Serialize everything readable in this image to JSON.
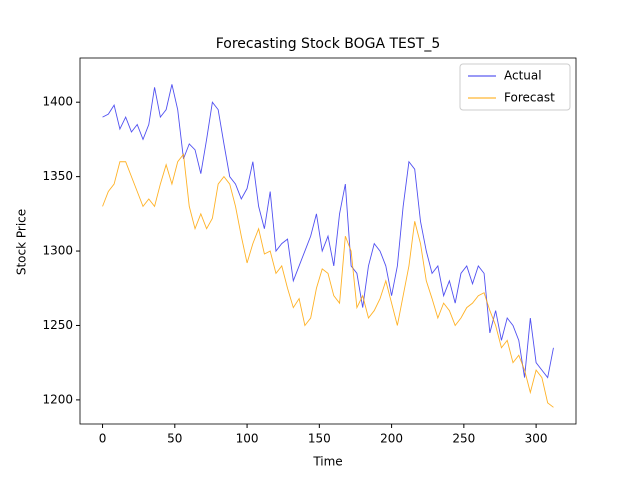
{
  "chart_data": {
    "type": "line",
    "title": "Forecasting Stock BOGA TEST_5",
    "xlabel": "Time",
    "ylabel": "Stock Price",
    "x": [
      0,
      4,
      8,
      12,
      16,
      20,
      24,
      28,
      32,
      36,
      40,
      44,
      48,
      52,
      56,
      60,
      64,
      68,
      72,
      76,
      80,
      84,
      88,
      92,
      96,
      100,
      104,
      108,
      112,
      116,
      120,
      124,
      128,
      132,
      136,
      140,
      144,
      148,
      152,
      156,
      160,
      164,
      168,
      172,
      176,
      180,
      184,
      188,
      192,
      196,
      200,
      204,
      208,
      212,
      216,
      220,
      224,
      228,
      232,
      236,
      240,
      244,
      248,
      252,
      256,
      260,
      264,
      268,
      272,
      276,
      280,
      284,
      288,
      292,
      296,
      300,
      304,
      308,
      312
    ],
    "series": [
      {
        "name": "Actual",
        "color": "#3333ee",
        "values": [
          1390,
          1392,
          1398,
          1382,
          1390,
          1380,
          1385,
          1375,
          1385,
          1410,
          1390,
          1395,
          1412,
          1395,
          1362,
          1372,
          1368,
          1352,
          1375,
          1400,
          1395,
          1372,
          1350,
          1345,
          1335,
          1342,
          1360,
          1330,
          1315,
          1340,
          1300,
          1305,
          1308,
          1280,
          1290,
          1300,
          1310,
          1325,
          1300,
          1310,
          1290,
          1325,
          1345,
          1290,
          1285,
          1262,
          1290,
          1305,
          1300,
          1290,
          1270,
          1290,
          1330,
          1360,
          1355,
          1320,
          1300,
          1285,
          1290,
          1270,
          1280,
          1265,
          1285,
          1290,
          1278,
          1290,
          1285,
          1245,
          1260,
          1240,
          1255,
          1250,
          1240,
          1215,
          1255,
          1225,
          1220,
          1215,
          1235
        ]
      },
      {
        "name": "Forecast",
        "color": "#ffa500",
        "values": [
          1330,
          1340,
          1345,
          1360,
          1360,
          1350,
          1340,
          1330,
          1335,
          1330,
          1345,
          1358,
          1345,
          1360,
          1365,
          1330,
          1315,
          1325,
          1315,
          1322,
          1345,
          1350,
          1345,
          1330,
          1310,
          1292,
          1305,
          1315,
          1298,
          1300,
          1285,
          1290,
          1275,
          1262,
          1268,
          1250,
          1255,
          1275,
          1288,
          1285,
          1270,
          1265,
          1310,
          1300,
          1262,
          1270,
          1255,
          1260,
          1268,
          1280,
          1265,
          1250,
          1270,
          1290,
          1320,
          1305,
          1280,
          1268,
          1255,
          1265,
          1260,
          1250,
          1255,
          1262,
          1265,
          1270,
          1272,
          1260,
          1250,
          1235,
          1240,
          1225,
          1230,
          1220,
          1205,
          1220,
          1215,
          1198,
          1195
        ]
      }
    ],
    "xlim": [
      -15.6,
      327.6
    ],
    "ylim": [
      1183.8,
      1429.7
    ],
    "xticks": [
      0,
      50,
      100,
      150,
      200,
      250,
      300
    ],
    "yticks": [
      1200,
      1250,
      1300,
      1350,
      1400
    ],
    "legend": "upper right"
  }
}
